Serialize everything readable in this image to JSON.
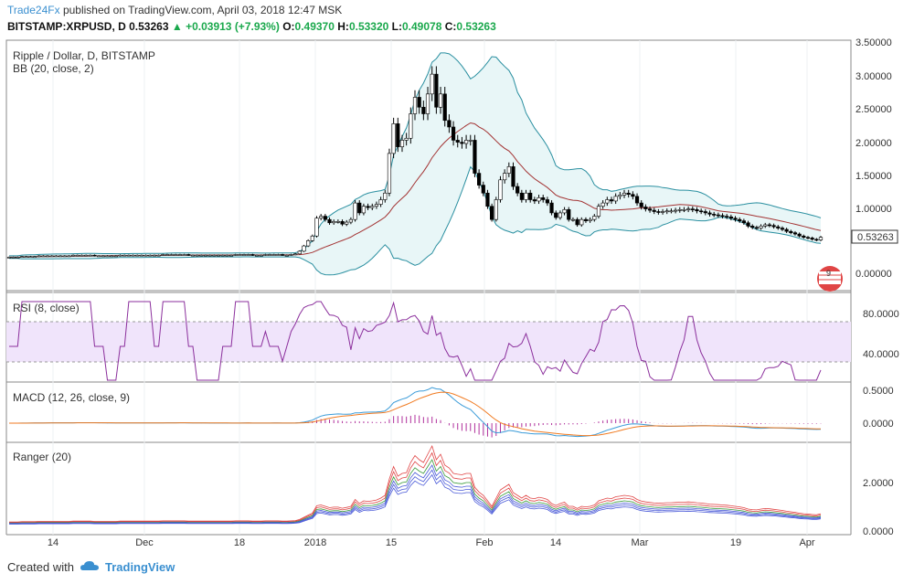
{
  "header": {
    "publisher": "Trade24Fx",
    "published_text": "published on TradingView.com, April 03, 2018 12:47 MSK",
    "symbol": "BITSTAMP:XRPUSD, D",
    "last": "0.53263",
    "change": "+0.03913 (+7.93%)",
    "open_label": "O:",
    "open": "0.49370",
    "high_label": "H:",
    "high": "0.53320",
    "low_label": "L:",
    "low": "0.49078",
    "close_label": "C:",
    "close": "0.53263"
  },
  "panes": {
    "main": {
      "title": "Ripple / Dollar, D, BITSTAMP",
      "indicator": "BB (20, close, 2)",
      "y_ticks": [
        "3.50000",
        "3.00000",
        "2.50000",
        "2.00000",
        "1.50000",
        "1.00000",
        "0.53263",
        "0.00000"
      ],
      "badge": "9"
    },
    "rsi": {
      "title": "RSI (8, close)",
      "y_ticks": [
        "80.0000",
        "40.0000"
      ]
    },
    "macd": {
      "title": "MACD (12, 26, close, 9)",
      "y_ticks": [
        "0.5000",
        "0.0000"
      ]
    },
    "ranger": {
      "title": "Ranger (20)",
      "y_ticks": [
        "2.0000",
        "0.0000"
      ]
    }
  },
  "x_axis": [
    "14",
    "Dec",
    "18",
    "2018",
    "15",
    "Feb",
    "14",
    "Mar",
    "19",
    "Apr"
  ],
  "footer": {
    "created_with": "Created with",
    "brand": "TradingView"
  },
  "colors": {
    "bb_band": "#2a8fa0",
    "bb_fill": "#e8f6f7",
    "bb_mid": "#a33333",
    "rsi": "#8b2f9c",
    "rsi_band": "#f0e4fb",
    "macd": "#3a9bd8",
    "signal": "#f07a20",
    "hist": "#b0309c",
    "up": "#1aa84c"
  },
  "chart_data": {
    "type": "candlestick",
    "price_closes": [
      0.23,
      0.23,
      0.23,
      0.24,
      0.24,
      0.24,
      0.24,
      0.25,
      0.25,
      0.25,
      0.25,
      0.25,
      0.25,
      0.25,
      0.25,
      0.26,
      0.26,
      0.26,
      0.26,
      0.26,
      0.25,
      0.25,
      0.25,
      0.25,
      0.25,
      0.25,
      0.26,
      0.26,
      0.26,
      0.26,
      0.26,
      0.26,
      0.26,
      0.26,
      0.26,
      0.26,
      0.27,
      0.27,
      0.27,
      0.27,
      0.27,
      0.27,
      0.26,
      0.26,
      0.26,
      0.26,
      0.26,
      0.26,
      0.26,
      0.26,
      0.26,
      0.26,
      0.26,
      0.27,
      0.27,
      0.27,
      0.27,
      0.26,
      0.26,
      0.26,
      0.27,
      0.27,
      0.27,
      0.27,
      0.26,
      0.26,
      0.27,
      0.28,
      0.32,
      0.4,
      0.48,
      0.55,
      0.82,
      0.85,
      0.8,
      0.75,
      0.77,
      0.77,
      0.73,
      0.76,
      0.8,
      1.05,
      0.9,
      1.0,
      0.98,
      1.0,
      1.03,
      1.1,
      1.2,
      1.8,
      2.25,
      1.9,
      2.0,
      2.03,
      2.4,
      2.65,
      2.5,
      2.4,
      2.7,
      3.0,
      2.5,
      2.7,
      2.3,
      2.2,
      2.0,
      1.97,
      1.95,
      2.0,
      2.0,
      1.5,
      1.32,
      1.2,
      1.0,
      0.8,
      1.1,
      1.4,
      1.5,
      1.6,
      1.3,
      1.2,
      1.1,
      1.2,
      1.1,
      1.08,
      1.13,
      1.1,
      1.05,
      0.9,
      0.83,
      0.9,
      0.95,
      0.8,
      0.8,
      0.72,
      0.8,
      0.78,
      0.8,
      0.85,
      1.0,
      1.05,
      1.1,
      1.08,
      1.15,
      1.17,
      1.2,
      1.18,
      1.15,
      1.05,
      0.99,
      0.96,
      0.94,
      0.92,
      0.91,
      0.92,
      0.93,
      0.93,
      0.94,
      0.95,
      0.95,
      0.96,
      0.95,
      0.93,
      0.92,
      0.9,
      0.88,
      0.87,
      0.86,
      0.85,
      0.84,
      0.82,
      0.8,
      0.78,
      0.75,
      0.7,
      0.68,
      0.67,
      0.7,
      0.72,
      0.71,
      0.69,
      0.67,
      0.65,
      0.62,
      0.6,
      0.58,
      0.55,
      0.53,
      0.52,
      0.5,
      0.49,
      0.53
    ],
    "x_labels": [
      "14",
      "Dec",
      "18",
      "2018",
      "15",
      "Feb",
      "14",
      "Mar",
      "19",
      "Apr"
    ]
  }
}
